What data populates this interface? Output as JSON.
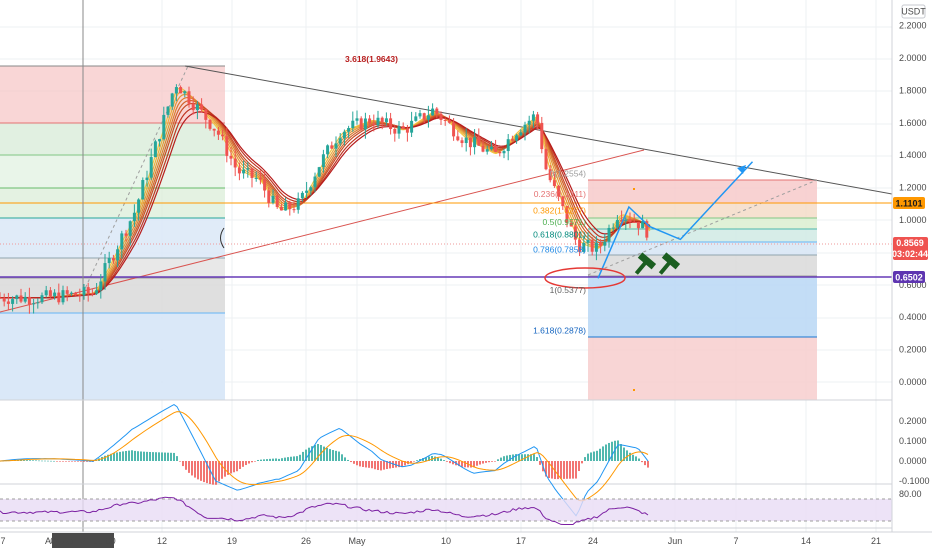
{
  "currency_button": "USDT",
  "crosshair_date_label": "04 Apr '21  00:00",
  "top_label": "3.618(1.9643)",
  "price_badges": {
    "last_price": "0.8569",
    "countdown": "03:02:44",
    "level_upper": "1.1101",
    "level_lower": "0.6502"
  },
  "colors": {
    "up_candle": "#26a69a",
    "down_candle": "#ef5350",
    "ribbon_start": "#f4c542",
    "ribbon_end": "#b71c1c",
    "macd_line": "#2196f3",
    "signal_line": "#ff9800",
    "rsi_line": "#7b1fa2",
    "forecast_line": "#2196f3",
    "orange_level": "#ff9800",
    "purple_level": "#673ab7",
    "accent_red": "#e53935",
    "hammer_icon": "#1b5e20"
  },
  "chart_data": [
    {
      "type": "candlestick",
      "pair_quote": "USDT",
      "x_tick_labels": [
        "7",
        "A",
        "12",
        "19",
        "26",
        "May",
        "10",
        "17",
        "24",
        "Jun",
        "7",
        "14",
        "21"
      ],
      "y_tick_labels": [
        "0.0000",
        "0.2000",
        "0.4000",
        "0.6000",
        "0.8000",
        "1.0000",
        "1.2000",
        "1.4000",
        "1.6000",
        "1.8000",
        "2.0000",
        "2.2000"
      ],
      "ylim": [
        -0.1,
        2.35
      ],
      "close_series_approx": [
        {
          "x": "2021-03-31",
          "y": 0.52
        },
        {
          "x": "2021-04-05",
          "y": 0.55
        },
        {
          "x": "2021-04-07",
          "y": 0.8
        },
        {
          "x": "2021-04-09",
          "y": 1.05
        },
        {
          "x": "2021-04-11",
          "y": 1.45
        },
        {
          "x": "2021-04-13",
          "y": 1.85
        },
        {
          "x": "2021-04-15",
          "y": 1.7
        },
        {
          "x": "2021-04-17",
          "y": 1.55
        },
        {
          "x": "2021-04-19",
          "y": 1.3
        },
        {
          "x": "2021-04-21",
          "y": 1.25
        },
        {
          "x": "2021-04-23",
          "y": 1.05
        },
        {
          "x": "2021-04-25",
          "y": 1.1
        },
        {
          "x": "2021-04-27",
          "y": 1.35
        },
        {
          "x": "2021-04-29",
          "y": 1.55
        },
        {
          "x": "2021-05-02",
          "y": 1.62
        },
        {
          "x": "2021-05-05",
          "y": 1.55
        },
        {
          "x": "2021-05-08",
          "y": 1.68
        },
        {
          "x": "2021-05-11",
          "y": 1.5
        },
        {
          "x": "2021-05-14",
          "y": 1.4
        },
        {
          "x": "2021-05-16",
          "y": 1.55
        },
        {
          "x": "2021-05-18",
          "y": 1.65
        },
        {
          "x": "2021-05-19",
          "y": 1.3
        },
        {
          "x": "2021-05-20",
          "y": 1.15
        },
        {
          "x": "2021-05-22",
          "y": 0.85
        },
        {
          "x": "2021-05-24",
          "y": 0.82
        },
        {
          "x": "2021-05-26",
          "y": 1.05
        },
        {
          "x": "2021-05-28",
          "y": 0.98
        },
        {
          "x": "2021-05-30",
          "y": 0.857
        }
      ],
      "fib_levels": [
        {
          "label": "1.618(0.2878)",
          "value": 0.2878
        },
        {
          "label": "1(0.5377)",
          "value": 0.5377
        },
        {
          "label": "0.786(0.7858)",
          "value": 0.7858
        },
        {
          "label": "0.618(0.8801)",
          "value": 0.8801
        },
        {
          "label": "0.5(0.9571)",
          "value": 0.9571
        },
        {
          "label": "0.382(1.0277)",
          "value": 1.0277
        },
        {
          "label": "0.236(1.1311)",
          "value": 1.1311
        },
        {
          "label": "0(1.2554)",
          "value": 1.2554
        }
      ],
      "horizontal_levels": [
        1.1101,
        0.6502
      ],
      "forecast_path": [
        {
          "x": "2021-05-24",
          "y": 0.64
        },
        {
          "x": "2021-05-27",
          "y": 1.08
        },
        {
          "x": "2021-05-29",
          "y": 0.96
        },
        {
          "x": "2021-06-01",
          "y": 0.88
        },
        {
          "x": "2021-06-08",
          "y": 1.36
        }
      ]
    },
    {
      "type": "line",
      "panel": "MACD",
      "y_tick_labels": [
        "-0.1000",
        "0.0000",
        "0.1000",
        "0.2000"
      ],
      "ylim": [
        -0.15,
        0.25
      ]
    },
    {
      "type": "line",
      "panel": "RSI",
      "y_tick_labels": [
        "80.00"
      ]
    }
  ]
}
